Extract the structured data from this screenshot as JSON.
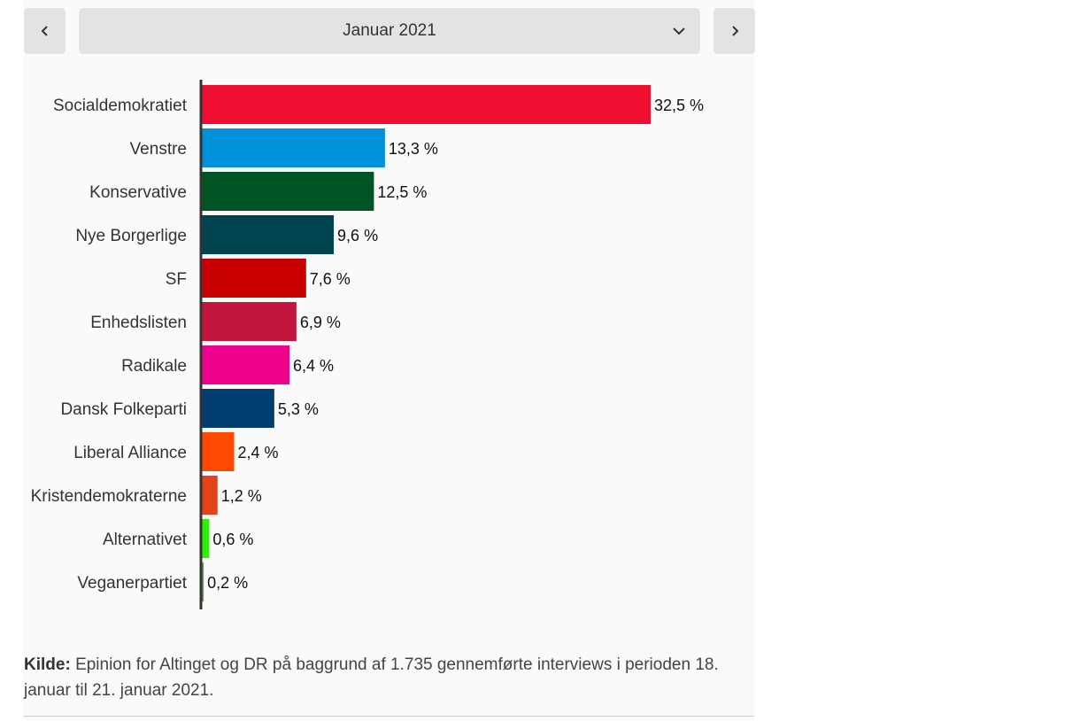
{
  "selector": {
    "current_month": "Januar 2021",
    "prev_icon": "chevron-left-icon",
    "next_icon": "chevron-right-icon",
    "dropdown_icon": "chevron-down-icon"
  },
  "chart_data": {
    "type": "bar",
    "orientation": "horizontal",
    "title": "",
    "xlabel": "",
    "ylabel": "",
    "xlim": [
      0,
      32.5
    ],
    "grid": false,
    "categories": [
      "Socialdemokratiet",
      "Venstre",
      "Konservative",
      "Nye Borgerlige",
      "SF",
      "Enhedslisten",
      "Radikale",
      "Dansk Folkeparti",
      "Liberal Alliance",
      "Kristendemokraterne",
      "Alternativet",
      "Veganerpartiet"
    ],
    "values": [
      32.5,
      13.3,
      12.5,
      9.6,
      7.6,
      6.9,
      6.4,
      5.3,
      2.4,
      1.2,
      0.6,
      0.2
    ],
    "value_labels": [
      "32,5 %",
      "13,3 %",
      "12,5 %",
      "9,6 %",
      "7,6 %",
      "6,9 %",
      "6,4 %",
      "5,3 %",
      "2,4 %",
      "1,2 %",
      "0,6 %",
      "0,2 %"
    ],
    "colors": [
      "#f00e31",
      "#0190da",
      "#005423",
      "#00444f",
      "#c80000",
      "#c4153e",
      "#ec008c",
      "#003d73",
      "#ff4a00",
      "#e34317",
      "#2bf100",
      "#5ba14c"
    ],
    "axis_color": "#333333"
  },
  "source": {
    "label": "Kilde:",
    "text": "Epinion for Altinget og DR på baggrund af 1.735 gennemførte interviews i perioden 18. januar til 21. januar 2021."
  }
}
